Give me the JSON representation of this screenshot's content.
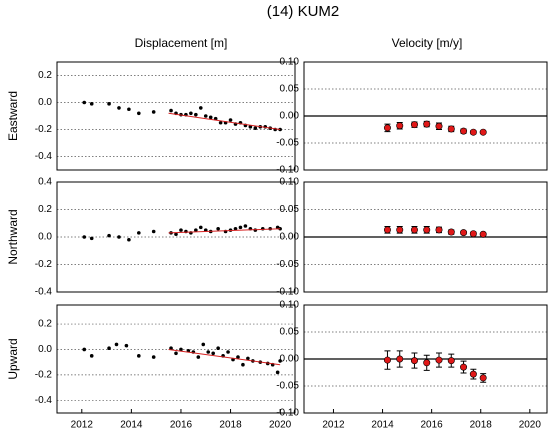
{
  "title": "(14) KUM2",
  "columns": [
    "Displacement [m]",
    "Velocity [m/y]"
  ],
  "chart_data": [
    {
      "type": "scatter",
      "ylabel": "Eastward",
      "color": "#000000",
      "trend_color": "#d62020",
      "grid": true,
      "xlim": [
        2011,
        2020.6
      ],
      "ylim": [
        -0.5,
        0.3
      ],
      "yticks": [
        0.2,
        {
          "value": 0,
          "label": "0.0"
        },
        -0.2,
        -0.4
      ],
      "x": [
        2012.1,
        2012.4,
        2013.1,
        2013.5,
        2013.9,
        2014.3,
        2014.9,
        2015.6,
        2015.8,
        2016.0,
        2016.2,
        2016.4,
        2016.6,
        2016.8,
        2017.0,
        2017.2,
        2017.4,
        2017.6,
        2017.8,
        2018.0,
        2018.2,
        2018.4,
        2018.6,
        2018.8,
        2019.0,
        2019.2,
        2019.4,
        2019.6,
        2019.8,
        2020.0
      ],
      "values": [
        0.0,
        -0.01,
        -0.01,
        -0.04,
        -0.05,
        -0.08,
        -0.07,
        -0.06,
        -0.08,
        -0.09,
        -0.09,
        -0.08,
        -0.09,
        -0.04,
        -0.1,
        -0.11,
        -0.12,
        -0.15,
        -0.15,
        -0.13,
        -0.16,
        -0.15,
        -0.17,
        -0.18,
        -0.19,
        -0.18,
        -0.18,
        -0.19,
        -0.2,
        -0.2
      ],
      "trend": {
        "x": [
          2015.5,
          2020
        ],
        "values": [
          -0.08,
          -0.2
        ]
      }
    },
    {
      "type": "errorbar",
      "color": "#e01818",
      "grid": true,
      "zero_line": true,
      "xlim": [
        2010.8,
        2020.7
      ],
      "ylim": [
        -0.1,
        0.1
      ],
      "yticks": [
        {
          "value": 0.1,
          "label": "0.10"
        },
        0.05,
        {
          "value": 0,
          "label": "0.00"
        },
        -0.05,
        {
          "value": -0.1,
          "label": "-0.10"
        }
      ],
      "x": [
        2014.2,
        2014.7,
        2015.3,
        2015.8,
        2016.3,
        2016.8,
        2017.3,
        2017.7,
        2018.1
      ],
      "values": [
        -0.022,
        -0.018,
        -0.016,
        -0.015,
        -0.019,
        -0.024,
        -0.028,
        -0.03,
        -0.03
      ],
      "errors": [
        0.007,
        0.006,
        0.005,
        0.005,
        0.006,
        0.005,
        0.004,
        0.003,
        0.002
      ]
    },
    {
      "type": "scatter",
      "ylabel": "Northward",
      "color": "#000000",
      "trend_color": "#d62020",
      "grid": true,
      "xlim": [
        2011,
        2020.6
      ],
      "ylim": [
        -0.4,
        0.4
      ],
      "yticks": [
        0.4,
        0.2,
        {
          "value": 0,
          "label": "0.0"
        },
        -0.2,
        -0.4
      ],
      "x": [
        2012.1,
        2012.4,
        2013.1,
        2013.5,
        2013.9,
        2014.3,
        2014.9,
        2015.6,
        2015.8,
        2016.0,
        2016.2,
        2016.4,
        2016.6,
        2016.8,
        2017.0,
        2017.2,
        2017.5,
        2017.8,
        2018.0,
        2018.2,
        2018.4,
        2018.6,
        2018.8,
        2019.0,
        2019.3,
        2019.6,
        2019.9,
        2020.0
      ],
      "values": [
        0.0,
        -0.01,
        0.01,
        0.0,
        -0.02,
        0.03,
        0.04,
        0.03,
        0.02,
        0.05,
        0.04,
        0.03,
        0.05,
        0.07,
        0.05,
        0.04,
        0.06,
        0.04,
        0.05,
        0.06,
        0.07,
        0.08,
        0.06,
        0.05,
        0.06,
        0.06,
        0.07,
        0.06
      ],
      "trend": {
        "x": [
          2015.5,
          2020
        ],
        "values": [
          0.03,
          0.06
        ]
      }
    },
    {
      "type": "errorbar",
      "color": "#e01818",
      "grid": true,
      "zero_line": true,
      "xlim": [
        2010.8,
        2020.7
      ],
      "ylim": [
        -0.1,
        0.1
      ],
      "yticks": [
        {
          "value": 0.1,
          "label": "0.10"
        },
        0.05,
        {
          "value": 0,
          "label": "0.00"
        },
        -0.05,
        {
          "value": -0.1,
          "label": "-0.10"
        }
      ],
      "x": [
        2014.2,
        2014.7,
        2015.3,
        2015.8,
        2016.3,
        2016.8,
        2017.3,
        2017.7,
        2018.1
      ],
      "values": [
        0.013,
        0.013,
        0.013,
        0.013,
        0.013,
        0.009,
        0.008,
        0.006,
        0.005
      ],
      "errors": [
        0.006,
        0.006,
        0.006,
        0.006,
        0.005,
        0.004,
        0.003,
        0.003,
        0.002
      ]
    },
    {
      "type": "scatter",
      "ylabel": "Upward",
      "color": "#000000",
      "trend_color": "#d62020",
      "grid": true,
      "xlim": [
        2011,
        2020.6
      ],
      "ylim": [
        -0.5,
        0.35
      ],
      "yticks": [
        0.2,
        {
          "value": 0,
          "label": "0.0"
        },
        -0.2,
        -0.4
      ],
      "xticks": [
        2012,
        2014,
        2016,
        2018,
        2020
      ],
      "x": [
        2012.1,
        2012.4,
        2013.1,
        2013.4,
        2013.8,
        2014.3,
        2014.9,
        2015.6,
        2015.8,
        2016.0,
        2016.3,
        2016.5,
        2016.7,
        2016.9,
        2017.1,
        2017.3,
        2017.5,
        2017.7,
        2017.9,
        2018.1,
        2018.3,
        2018.5,
        2018.7,
        2018.9,
        2019.2,
        2019.5,
        2019.7,
        2019.9,
        2020.0
      ],
      "values": [
        0.0,
        -0.05,
        0.01,
        0.04,
        0.03,
        -0.05,
        -0.06,
        0.01,
        -0.03,
        0.0,
        -0.01,
        -0.02,
        -0.06,
        0.04,
        -0.02,
        -0.03,
        0.01,
        -0.05,
        -0.02,
        -0.08,
        -0.06,
        -0.12,
        -0.07,
        -0.09,
        -0.1,
        -0.11,
        -0.12,
        -0.18,
        -0.09
      ],
      "trend": {
        "x": [
          2015.5,
          2020
        ],
        "values": [
          0.0,
          -0.12
        ]
      }
    },
    {
      "type": "errorbar",
      "color": "#e01818",
      "grid": true,
      "zero_line": true,
      "xlim": [
        2010.8,
        2020.7
      ],
      "ylim": [
        -0.1,
        0.1
      ],
      "yticks": [
        {
          "value": 0.1,
          "label": "0.10"
        },
        0.05,
        {
          "value": 0,
          "label": "0.00"
        },
        -0.05,
        {
          "value": -0.1,
          "label": "-0.10"
        }
      ],
      "xticks": [
        2012,
        2014,
        2016,
        2018,
        2020
      ],
      "x": [
        2014.2,
        2014.7,
        2015.3,
        2015.8,
        2016.3,
        2016.8,
        2017.3,
        2017.7,
        2018.1
      ],
      "values": [
        -0.002,
        0.0,
        -0.003,
        -0.007,
        -0.002,
        -0.003,
        -0.015,
        -0.028,
        -0.035
      ],
      "errors": [
        0.017,
        0.015,
        0.014,
        0.014,
        0.013,
        0.012,
        0.011,
        0.009,
        0.008
      ]
    }
  ]
}
